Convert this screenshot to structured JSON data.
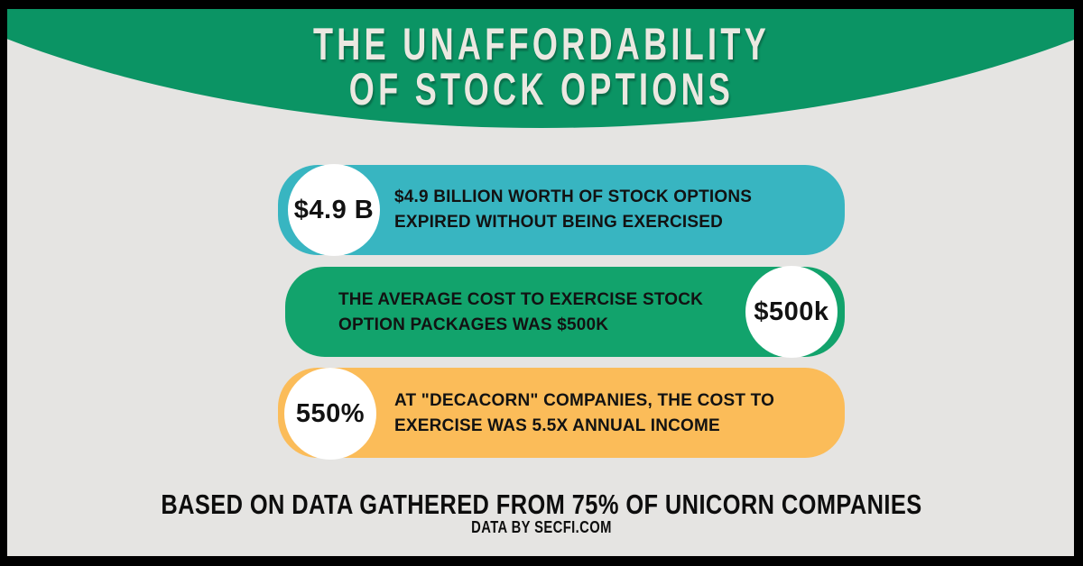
{
  "header": {
    "title": "THE UNAFFORDABILITY\nOF STOCK OPTIONS",
    "bg_color": "#0b9464",
    "text_color": "#ebe8e1"
  },
  "stats": [
    {
      "badge": "$4.9 B",
      "badge_side": "left",
      "text": "$4.9 BILLION WORTH OF STOCK OPTIONS\nEXPIRED WITHOUT BEING EXERCISED",
      "color": "#38b5c1"
    },
    {
      "badge": "$500k",
      "badge_side": "right",
      "text": "THE AVERAGE COST TO EXERCISE STOCK\nOPTION PACKAGES WAS $500K",
      "color": "#12a36c"
    },
    {
      "badge": "550%",
      "badge_side": "left",
      "text": "AT \"DECACORN\" COMPANIES, THE COST TO\nEXERCISE WAS 5.5X ANNUAL INCOME",
      "color": "#fbbc59"
    }
  ],
  "footer": {
    "line1": "BASED ON DATA GATHERED FROM 75% OF UNICORN COMPANIES",
    "line2": "DATA BY SECFI.COM"
  },
  "palette": {
    "frame": "#000000",
    "background": "#e5e4e2",
    "badge_bg": "#ffffff",
    "stat_text": "#121212"
  }
}
